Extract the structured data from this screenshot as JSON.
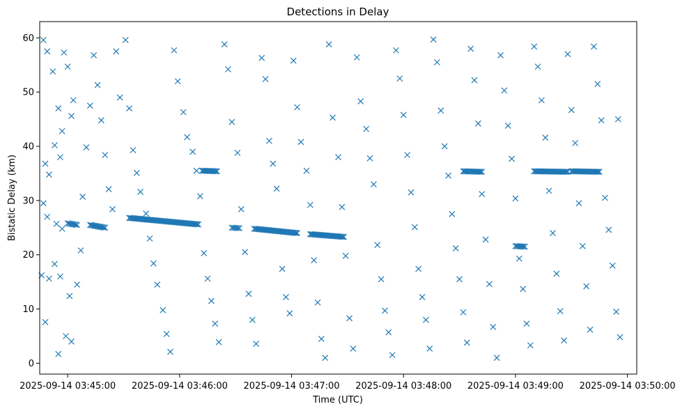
{
  "chart_data": {
    "type": "scatter",
    "title": "Detections in Delay",
    "xlabel": "Time (UTC)",
    "ylabel": "Bistatic Delay (km)",
    "marker": "x",
    "color": "#1f77b4",
    "xlim": [
      "2025-09-14 03:44:45",
      "2025-09-14 03:50:05"
    ],
    "ylim": [
      -2,
      63
    ],
    "x_ticks": [
      "2025-09-14 03:45:00",
      "2025-09-14 03:46:00",
      "2025-09-14 03:47:00",
      "2025-09-14 03:48:00",
      "2025-09-14 03:49:00",
      "2025-09-14 03:50:00"
    ],
    "y_ticks": [
      "0",
      "10",
      "20",
      "30",
      "40",
      "50",
      "60"
    ],
    "grid": false,
    "legend": "none",
    "tracks": [
      {
        "t_start": "2025-09-14 03:45:00",
        "t_end": "2025-09-14 03:45:05",
        "delay_start": 25.8,
        "delay_end": 25.5
      },
      {
        "t_start": "2025-09-14 03:45:12",
        "t_end": "2025-09-14 03:45:20",
        "delay_start": 25.5,
        "delay_end": 25.0
      },
      {
        "t_start": "2025-09-14 03:45:33",
        "t_end": "2025-09-14 03:46:10",
        "delay_start": 26.8,
        "delay_end": 25.6
      },
      {
        "t_start": "2025-09-14 03:46:12",
        "t_end": "2025-09-14 03:46:20",
        "delay_start": 35.5,
        "delay_end": 35.4
      },
      {
        "t_start": "2025-09-14 03:46:28",
        "t_end": "2025-09-14 03:46:32",
        "delay_start": 25.0,
        "delay_end": 24.9
      },
      {
        "t_start": "2025-09-14 03:46:40",
        "t_end": "2025-09-14 03:47:03",
        "delay_start": 24.8,
        "delay_end": 24.0
      },
      {
        "t_start": "2025-09-14 03:47:10",
        "t_end": "2025-09-14 03:47:28",
        "delay_start": 23.8,
        "delay_end": 23.3
      },
      {
        "t_start": "2025-09-14 03:48:32",
        "t_end": "2025-09-14 03:48:42",
        "delay_start": 35.4,
        "delay_end": 35.3
      },
      {
        "t_start": "2025-09-14 03:49:00",
        "t_end": "2025-09-14 03:49:05",
        "delay_start": 21.6,
        "delay_end": 21.5
      },
      {
        "t_start": "2025-09-14 03:49:10",
        "t_end": "2025-09-14 03:49:28",
        "delay_start": 35.4,
        "delay_end": 35.3
      },
      {
        "t_start": "2025-09-14 03:49:30",
        "t_end": "2025-09-14 03:49:45",
        "delay_start": 35.4,
        "delay_end": 35.3
      }
    ],
    "points": [
      [
        "2025-09-14 03:44:47",
        59.6
      ],
      [
        "2025-09-14 03:44:49",
        57.5
      ],
      [
        "2025-09-14 03:44:52",
        53.8
      ],
      [
        "2025-09-14 03:44:55",
        47.0
      ],
      [
        "2025-09-14 03:44:57",
        42.8
      ],
      [
        "2025-09-14 03:44:58",
        57.3
      ],
      [
        "2025-09-14 03:45:00",
        54.7
      ],
      [
        "2025-09-14 03:45:03",
        48.5
      ],
      [
        "2025-09-14 03:44:48",
        36.8
      ],
      [
        "2025-09-14 03:44:50",
        34.8
      ],
      [
        "2025-09-14 03:44:53",
        40.2
      ],
      [
        "2025-09-14 03:44:56",
        38.0
      ],
      [
        "2025-09-14 03:45:02",
        45.6
      ],
      [
        "2025-09-14 03:44:47",
        29.5
      ],
      [
        "2025-09-14 03:44:49",
        27.0
      ],
      [
        "2025-09-14 03:44:54",
        25.7
      ],
      [
        "2025-09-14 03:44:57",
        24.8
      ],
      [
        "2025-09-14 03:44:46",
        16.2
      ],
      [
        "2025-09-14 03:44:50",
        15.6
      ],
      [
        "2025-09-14 03:44:53",
        18.3
      ],
      [
        "2025-09-14 03:44:56",
        16.0
      ],
      [
        "2025-09-14 03:45:01",
        12.4
      ],
      [
        "2025-09-14 03:45:05",
        14.5
      ],
      [
        "2025-09-14 03:44:48",
        7.6
      ],
      [
        "2025-09-14 03:44:55",
        1.7
      ],
      [
        "2025-09-14 03:44:59",
        5.0
      ],
      [
        "2025-09-14 03:45:02",
        4.0
      ],
      [
        "2025-09-14 03:45:07",
        20.8
      ],
      [
        "2025-09-14 03:45:08",
        30.7
      ],
      [
        "2025-09-14 03:45:10",
        39.8
      ],
      [
        "2025-09-14 03:45:12",
        47.5
      ],
      [
        "2025-09-14 03:45:14",
        56.8
      ],
      [
        "2025-09-14 03:45:16",
        51.3
      ],
      [
        "2025-09-14 03:45:18",
        44.8
      ],
      [
        "2025-09-14 03:45:20",
        38.4
      ],
      [
        "2025-09-14 03:45:22",
        32.1
      ],
      [
        "2025-09-14 03:45:24",
        28.4
      ],
      [
        "2025-09-14 03:45:26",
        57.5
      ],
      [
        "2025-09-14 03:45:28",
        49.0
      ],
      [
        "2025-09-14 03:45:31",
        59.6
      ],
      [
        "2025-09-14 03:45:33",
        47.0
      ],
      [
        "2025-09-14 03:45:35",
        39.3
      ],
      [
        "2025-09-14 03:45:37",
        35.1
      ],
      [
        "2025-09-14 03:45:39",
        31.6
      ],
      [
        "2025-09-14 03:45:42",
        27.6
      ],
      [
        "2025-09-14 03:45:44",
        23.0
      ],
      [
        "2025-09-14 03:45:46",
        18.4
      ],
      [
        "2025-09-14 03:45:48",
        14.5
      ],
      [
        "2025-09-14 03:45:51",
        9.8
      ],
      [
        "2025-09-14 03:45:53",
        5.4
      ],
      [
        "2025-09-14 03:45:55",
        2.1
      ],
      [
        "2025-09-14 03:45:57",
        57.7
      ],
      [
        "2025-09-14 03:45:59",
        52.0
      ],
      [
        "2025-09-14 03:46:02",
        46.3
      ],
      [
        "2025-09-14 03:46:04",
        41.7
      ],
      [
        "2025-09-14 03:46:07",
        39.0
      ],
      [
        "2025-09-14 03:46:09",
        35.5
      ],
      [
        "2025-09-14 03:46:11",
        30.8
      ],
      [
        "2025-09-14 03:46:13",
        20.3
      ],
      [
        "2025-09-14 03:46:15",
        15.6
      ],
      [
        "2025-09-14 03:46:17",
        11.5
      ],
      [
        "2025-09-14 03:46:19",
        7.3
      ],
      [
        "2025-09-14 03:46:21",
        3.9
      ],
      [
        "2025-09-14 03:46:24",
        58.8
      ],
      [
        "2025-09-14 03:46:26",
        54.2
      ],
      [
        "2025-09-14 03:46:28",
        44.5
      ],
      [
        "2025-09-14 03:46:31",
        38.8
      ],
      [
        "2025-09-14 03:46:33",
        28.4
      ],
      [
        "2025-09-14 03:46:35",
        20.5
      ],
      [
        "2025-09-14 03:46:37",
        12.8
      ],
      [
        "2025-09-14 03:46:39",
        8.0
      ],
      [
        "2025-09-14 03:46:41",
        3.6
      ],
      [
        "2025-09-14 03:46:44",
        56.3
      ],
      [
        "2025-09-14 03:46:46",
        52.4
      ],
      [
        "2025-09-14 03:46:48",
        41.0
      ],
      [
        "2025-09-14 03:46:50",
        36.8
      ],
      [
        "2025-09-14 03:46:52",
        32.2
      ],
      [
        "2025-09-14 03:46:55",
        17.4
      ],
      [
        "2025-09-14 03:46:57",
        12.2
      ],
      [
        "2025-09-14 03:46:59",
        9.2
      ],
      [
        "2025-09-14 03:47:01",
        55.8
      ],
      [
        "2025-09-14 03:47:03",
        47.2
      ],
      [
        "2025-09-14 03:47:05",
        40.8
      ],
      [
        "2025-09-14 03:47:08",
        35.5
      ],
      [
        "2025-09-14 03:47:10",
        29.2
      ],
      [
        "2025-09-14 03:47:12",
        19.0
      ],
      [
        "2025-09-14 03:47:14",
        11.2
      ],
      [
        "2025-09-14 03:47:16",
        4.5
      ],
      [
        "2025-09-14 03:47:18",
        1.0
      ],
      [
        "2025-09-14 03:47:20",
        58.8
      ],
      [
        "2025-09-14 03:47:22",
        45.3
      ],
      [
        "2025-09-14 03:47:25",
        38.0
      ],
      [
        "2025-09-14 03:47:27",
        28.8
      ],
      [
        "2025-09-14 03:47:29",
        19.8
      ],
      [
        "2025-09-14 03:47:31",
        8.3
      ],
      [
        "2025-09-14 03:47:33",
        2.7
      ],
      [
        "2025-09-14 03:47:35",
        56.4
      ],
      [
        "2025-09-14 03:47:37",
        48.3
      ],
      [
        "2025-09-14 03:47:40",
        43.2
      ],
      [
        "2025-09-14 03:47:42",
        37.8
      ],
      [
        "2025-09-14 03:47:44",
        33.0
      ],
      [
        "2025-09-14 03:47:46",
        21.8
      ],
      [
        "2025-09-14 03:47:48",
        15.5
      ],
      [
        "2025-09-14 03:47:50",
        9.7
      ],
      [
        "2025-09-14 03:47:52",
        5.7
      ],
      [
        "2025-09-14 03:47:54",
        1.5
      ],
      [
        "2025-09-14 03:47:56",
        57.7
      ],
      [
        "2025-09-14 03:47:58",
        52.5
      ],
      [
        "2025-09-14 03:48:00",
        45.8
      ],
      [
        "2025-09-14 03:48:02",
        38.4
      ],
      [
        "2025-09-14 03:48:04",
        31.5
      ],
      [
        "2025-09-14 03:48:06",
        25.1
      ],
      [
        "2025-09-14 03:48:08",
        17.4
      ],
      [
        "2025-09-14 03:48:10",
        12.2
      ],
      [
        "2025-09-14 03:48:12",
        8.0
      ],
      [
        "2025-09-14 03:48:14",
        2.7
      ],
      [
        "2025-09-14 03:48:16",
        59.7
      ],
      [
        "2025-09-14 03:48:18",
        55.5
      ],
      [
        "2025-09-14 03:48:20",
        46.6
      ],
      [
        "2025-09-14 03:48:22",
        40.0
      ],
      [
        "2025-09-14 03:48:24",
        34.6
      ],
      [
        "2025-09-14 03:48:26",
        27.5
      ],
      [
        "2025-09-14 03:48:28",
        21.2
      ],
      [
        "2025-09-14 03:48:30",
        15.5
      ],
      [
        "2025-09-14 03:48:32",
        9.4
      ],
      [
        "2025-09-14 03:48:34",
        3.8
      ],
      [
        "2025-09-14 03:48:36",
        58.0
      ],
      [
        "2025-09-14 03:48:38",
        52.2
      ],
      [
        "2025-09-14 03:48:40",
        44.2
      ],
      [
        "2025-09-14 03:48:42",
        31.2
      ],
      [
        "2025-09-14 03:48:44",
        22.8
      ],
      [
        "2025-09-14 03:48:46",
        14.6
      ],
      [
        "2025-09-14 03:48:48",
        6.7
      ],
      [
        "2025-09-14 03:48:50",
        1.0
      ],
      [
        "2025-09-14 03:48:52",
        56.8
      ],
      [
        "2025-09-14 03:48:54",
        50.3
      ],
      [
        "2025-09-14 03:48:56",
        43.8
      ],
      [
        "2025-09-14 03:48:58",
        37.7
      ],
      [
        "2025-09-14 03:49:00",
        30.4
      ],
      [
        "2025-09-14 03:49:02",
        19.3
      ],
      [
        "2025-09-14 03:49:04",
        13.7
      ],
      [
        "2025-09-14 03:49:06",
        7.3
      ],
      [
        "2025-09-14 03:49:08",
        3.3
      ],
      [
        "2025-09-14 03:49:10",
        58.4
      ],
      [
        "2025-09-14 03:49:12",
        54.7
      ],
      [
        "2025-09-14 03:49:14",
        48.5
      ],
      [
        "2025-09-14 03:49:16",
        41.6
      ],
      [
        "2025-09-14 03:49:18",
        31.8
      ],
      [
        "2025-09-14 03:49:20",
        24.0
      ],
      [
        "2025-09-14 03:49:22",
        16.5
      ],
      [
        "2025-09-14 03:49:24",
        9.6
      ],
      [
        "2025-09-14 03:49:26",
        4.2
      ],
      [
        "2025-09-14 03:49:28",
        57.0
      ],
      [
        "2025-09-14 03:49:30",
        46.7
      ],
      [
        "2025-09-14 03:49:32",
        40.6
      ],
      [
        "2025-09-14 03:49:34",
        29.5
      ],
      [
        "2025-09-14 03:49:36",
        21.6
      ],
      [
        "2025-09-14 03:49:38",
        14.2
      ],
      [
        "2025-09-14 03:49:40",
        6.2
      ],
      [
        "2025-09-14 03:49:42",
        58.4
      ],
      [
        "2025-09-14 03:49:44",
        51.5
      ],
      [
        "2025-09-14 03:49:46",
        44.8
      ],
      [
        "2025-09-14 03:49:48",
        30.5
      ],
      [
        "2025-09-14 03:49:50",
        24.6
      ],
      [
        "2025-09-14 03:49:52",
        18.0
      ],
      [
        "2025-09-14 03:49:54",
        9.5
      ],
      [
        "2025-09-14 03:49:56",
        4.8
      ],
      [
        "2025-09-14 03:49:55",
        45.0
      ]
    ]
  }
}
